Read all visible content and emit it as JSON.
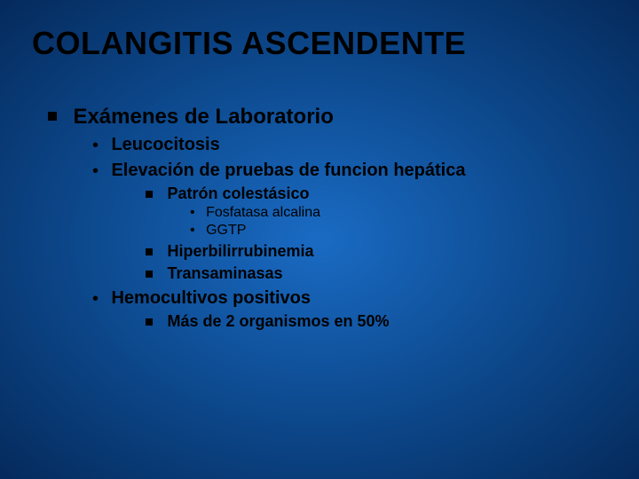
{
  "slide": {
    "background_gradient": [
      "#1a6bc4",
      "#0d4a8f",
      "#052a5c"
    ],
    "title": "COLANGITIS ASCENDENTE",
    "title_color": "#000000",
    "title_fontsize": 36,
    "text_color": "#000000",
    "bullets": {
      "l1_marker": "square",
      "l2_marker": "disc",
      "l3_marker": "square-small",
      "l4_marker": "disc-small"
    },
    "content": {
      "l1": {
        "text": "Exámenes de Laboratorio",
        "children": [
          {
            "text": "Leucocitosis"
          },
          {
            "text": "Elevación de pruebas de funcion hepática",
            "children": [
              {
                "text": "Patrón colestásico",
                "children": [
                  {
                    "text": "Fosfatasa alcalina"
                  },
                  {
                    "text": "GGTP"
                  }
                ]
              },
              {
                "text": "Hiperbilirrubinemia"
              },
              {
                "text": "Transaminasas"
              }
            ]
          },
          {
            "text": "Hemocultivos positivos",
            "children": [
              {
                "text": "Más de 2 organismos en 50%"
              }
            ]
          }
        ]
      }
    }
  }
}
